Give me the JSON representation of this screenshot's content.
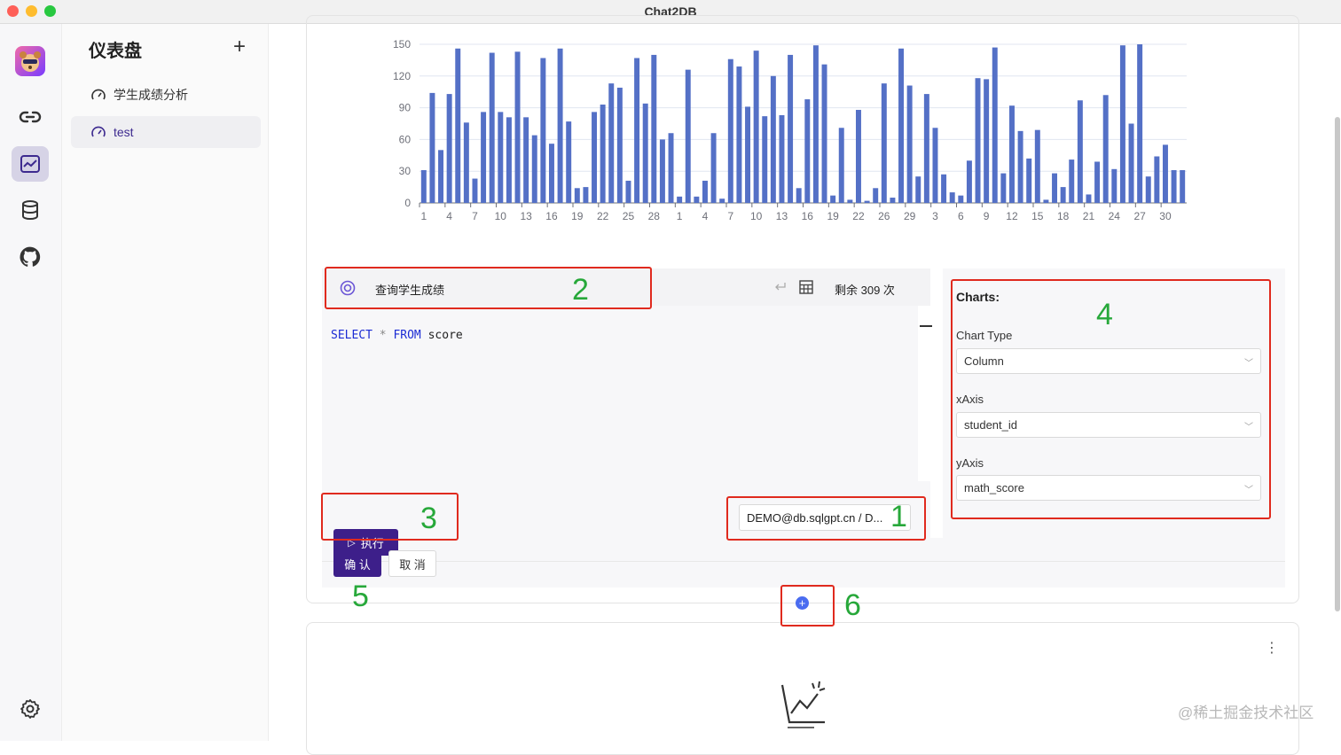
{
  "app": {
    "title": "Chat2DB"
  },
  "sidebar": {
    "title": "仪表盘",
    "add_label": "+",
    "items": [
      {
        "label": "学生成绩分析",
        "active": false
      },
      {
        "label": "test",
        "active": true
      }
    ]
  },
  "query": {
    "name": "查询学生成绩",
    "remaining": "剩余 309 次",
    "sql": {
      "select": "SELECT",
      "star": "*",
      "from": "FROM",
      "table": "score"
    }
  },
  "buttons": {
    "execute": "执行",
    "confirm": "确 认",
    "cancel": "取 消"
  },
  "datasource": "DEMO@db.sqlgpt.cn / D...",
  "chart_config": {
    "heading": "Charts:",
    "chart_type_label": "Chart Type",
    "chart_type_value": "Column",
    "xaxis_label": "xAxis",
    "xaxis_value": "student_id",
    "yaxis_label": "yAxis",
    "yaxis_value": "math_score"
  },
  "annotations": [
    "1",
    "2",
    "3",
    "4",
    "5",
    "6"
  ],
  "watermark": "@稀土掘金技术社区",
  "chart_data": {
    "type": "bar",
    "ylim": [
      0,
      150
    ],
    "yticks": [
      0,
      30,
      60,
      90,
      120,
      150
    ],
    "xticks": [
      "1",
      "4",
      "7",
      "10",
      "13",
      "16",
      "19",
      "22",
      "25",
      "28",
      "1",
      "4",
      "7",
      "10",
      "13",
      "16",
      "19",
      "22",
      "26",
      "29",
      "3",
      "6",
      "9",
      "12",
      "15",
      "18",
      "21",
      "24",
      "27",
      "30"
    ],
    "color": "#5470c6",
    "values": [
      31,
      104,
      50,
      103,
      146,
      76,
      23,
      86,
      142,
      86,
      81,
      143,
      81,
      64,
      137,
      56,
      146,
      77,
      14,
      15,
      86,
      93,
      113,
      109,
      21,
      137,
      94,
      140,
      60,
      66,
      6,
      126,
      6,
      21,
      66,
      4,
      136,
      129,
      91,
      144,
      82,
      120,
      83,
      140,
      14,
      98,
      149,
      131,
      7,
      71,
      3,
      88,
      2,
      14,
      113,
      5,
      146,
      111,
      25,
      103,
      71,
      27,
      10,
      7,
      40,
      118,
      117,
      147,
      28,
      92,
      68,
      42,
      69,
      3,
      28,
      15,
      41,
      97,
      8,
      39,
      102,
      32,
      149,
      75,
      150,
      25,
      44,
      55,
      31,
      31
    ]
  }
}
